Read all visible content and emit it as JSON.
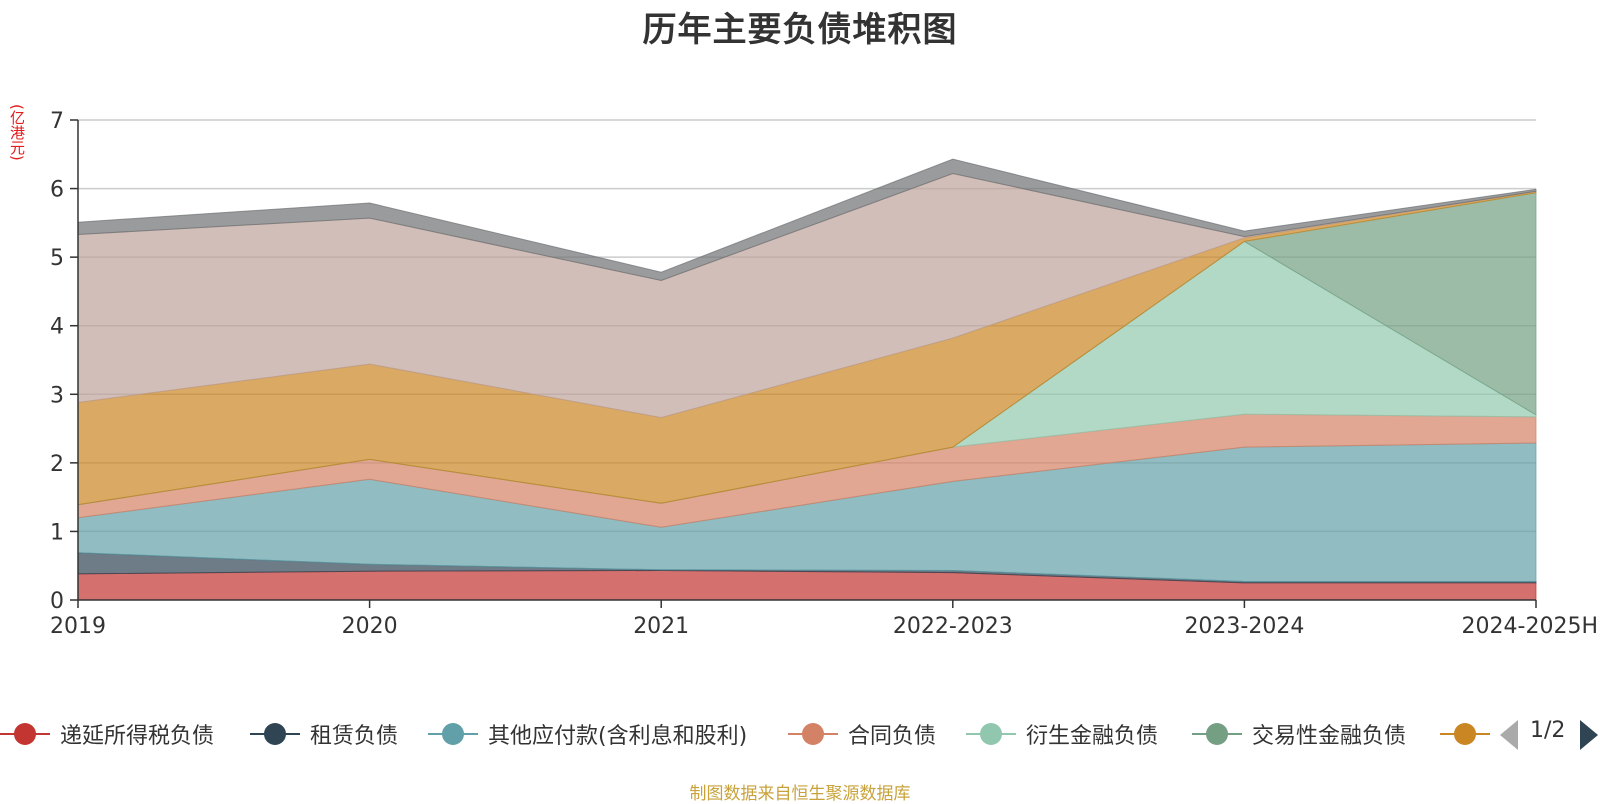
{
  "chart_data": {
    "type": "area",
    "stacked": true,
    "title": "历年主要负债堆积图",
    "unit_label": "(亿港元)",
    "categories": [
      "2019",
      "2020",
      "2021",
      "2022-2023",
      "2023-2024",
      "2024-2025H"
    ],
    "ylim": [
      0,
      7
    ],
    "yticks": [
      0,
      1,
      2,
      3,
      4,
      5,
      6,
      7
    ],
    "grid": true,
    "legend_position": "bottom",
    "series": [
      {
        "name": "递延所得税负债",
        "color": "#c23531",
        "values": [
          0.38,
          0.42,
          0.43,
          0.4,
          0.25,
          0.25
        ]
      },
      {
        "name": "租赁负债",
        "color": "#2f4554",
        "values": [
          0.31,
          0.1,
          0.01,
          0.03,
          0.02,
          0.02
        ]
      },
      {
        "name": "其他应付款(含利息和股利)",
        "color": "#61a0a8",
        "values": [
          0.51,
          1.24,
          0.62,
          1.3,
          1.96,
          2.02
        ]
      },
      {
        "name": "合同负债",
        "color": "#d48265",
        "values": [
          0.19,
          0.29,
          0.35,
          0.5,
          0.48,
          0.38
        ]
      },
      {
        "name": "衍生金融负债",
        "color": "#91c7ae",
        "values": [
          0,
          0,
          0,
          0,
          2.52,
          0.03
        ]
      },
      {
        "name": "交易性金融负债",
        "color": "#749f83",
        "values": [
          0,
          0,
          0,
          0,
          0,
          3.24
        ]
      },
      {
        "color": "#ca8622",
        "values": [
          1.49,
          1.39,
          1.25,
          1.59,
          0.05,
          0.02
        ]
      },
      {
        "color": "#bda29a",
        "values": [
          2.45,
          2.13,
          2.0,
          2.4,
          0.02,
          0.0
        ]
      },
      {
        "color": "#6e7074",
        "values": [
          0.18,
          0.22,
          0.12,
          0.21,
          0.08,
          0.03
        ]
      }
    ]
  },
  "legend": {
    "visible_items": [
      0,
      1,
      2,
      3,
      4,
      5,
      6
    ],
    "page_text": "1/2"
  },
  "source_note": "制图数据来自恒生聚源数据库"
}
